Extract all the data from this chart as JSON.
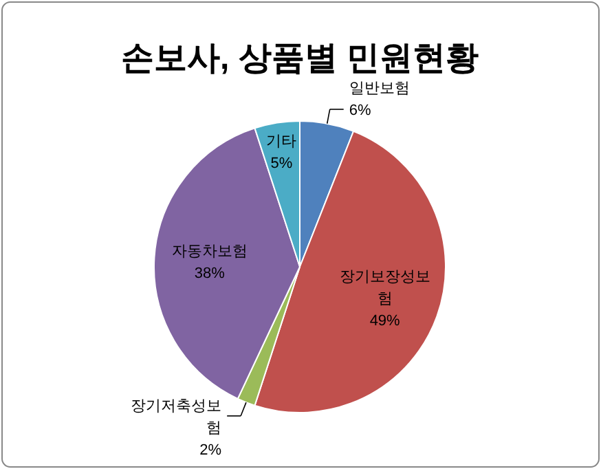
{
  "chart_data": {
    "type": "pie",
    "title": "손보사, 상품별 민원현황",
    "categories": [
      "일반보험",
      "장기보장성보험",
      "장기저축성보험",
      "자동차보험",
      "기타"
    ],
    "values": [
      6,
      49,
      2,
      38,
      5
    ],
    "colors": [
      "#4f81bd",
      "#c0504d",
      "#9bbb59",
      "#8064a2",
      "#4bacc6"
    ],
    "value_labels": [
      "6%",
      "49%",
      "2%",
      "38%",
      "5%"
    ]
  }
}
